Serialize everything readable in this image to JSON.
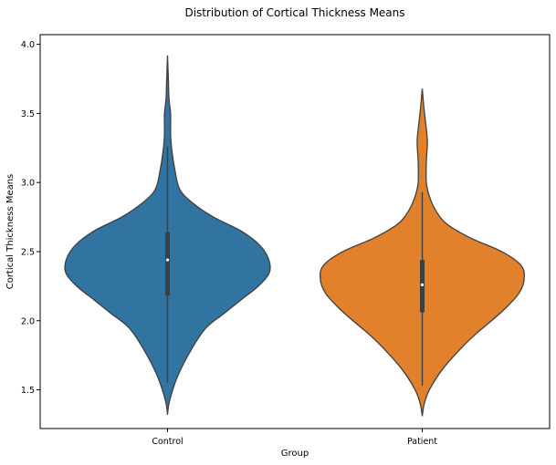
{
  "chart_data": {
    "type": "violin",
    "title": "Distribution of Cortical Thickness Means",
    "xlabel": "Group",
    "ylabel": "Cortical Thickness Means",
    "categories": [
      "Control",
      "Patient"
    ],
    "ylim": [
      1.22,
      4.07
    ],
    "yticks": [
      "1.5",
      "2.0",
      "2.5",
      "3.0",
      "3.5",
      "4.0"
    ],
    "grid": false,
    "series": [
      {
        "category": "Control",
        "color": "#3274a1",
        "min": 1.32,
        "max": 3.92,
        "whisker_low": 1.55,
        "q1": 2.18,
        "median": 2.44,
        "q3": 2.64,
        "whisker_high": 3.26,
        "density": [
          [
            1.32,
            0.0
          ],
          [
            1.42,
            0.02
          ],
          [
            1.6,
            0.1
          ],
          [
            1.8,
            0.24
          ],
          [
            1.95,
            0.38
          ],
          [
            2.05,
            0.55
          ],
          [
            2.15,
            0.72
          ],
          [
            2.25,
            0.89
          ],
          [
            2.35,
            1.0
          ],
          [
            2.45,
            0.99
          ],
          [
            2.55,
            0.9
          ],
          [
            2.65,
            0.72
          ],
          [
            2.75,
            0.45
          ],
          [
            2.85,
            0.25
          ],
          [
            2.95,
            0.12
          ],
          [
            3.1,
            0.07
          ],
          [
            3.25,
            0.04
          ],
          [
            3.35,
            0.03
          ],
          [
            3.5,
            0.03
          ],
          [
            3.6,
            0.015
          ],
          [
            3.75,
            0.008
          ],
          [
            3.92,
            0.0
          ]
        ]
      },
      {
        "category": "Patient",
        "color": "#e1812c",
        "min": 1.31,
        "max": 3.68,
        "whisker_low": 1.53,
        "q1": 2.06,
        "median": 2.26,
        "q3": 2.44,
        "whisker_high": 2.93,
        "density": [
          [
            1.31,
            0.0
          ],
          [
            1.4,
            0.02
          ],
          [
            1.5,
            0.07
          ],
          [
            1.65,
            0.2
          ],
          [
            1.8,
            0.38
          ],
          [
            1.9,
            0.52
          ],
          [
            2.0,
            0.68
          ],
          [
            2.1,
            0.83
          ],
          [
            2.2,
            0.95
          ],
          [
            2.3,
            1.0
          ],
          [
            2.4,
            0.97
          ],
          [
            2.5,
            0.78
          ],
          [
            2.6,
            0.47
          ],
          [
            2.7,
            0.24
          ],
          [
            2.8,
            0.13
          ],
          [
            2.9,
            0.07
          ],
          [
            3.0,
            0.04
          ],
          [
            3.15,
            0.04
          ],
          [
            3.3,
            0.05
          ],
          [
            3.45,
            0.03
          ],
          [
            3.55,
            0.015
          ],
          [
            3.68,
            0.0
          ]
        ]
      }
    ]
  }
}
